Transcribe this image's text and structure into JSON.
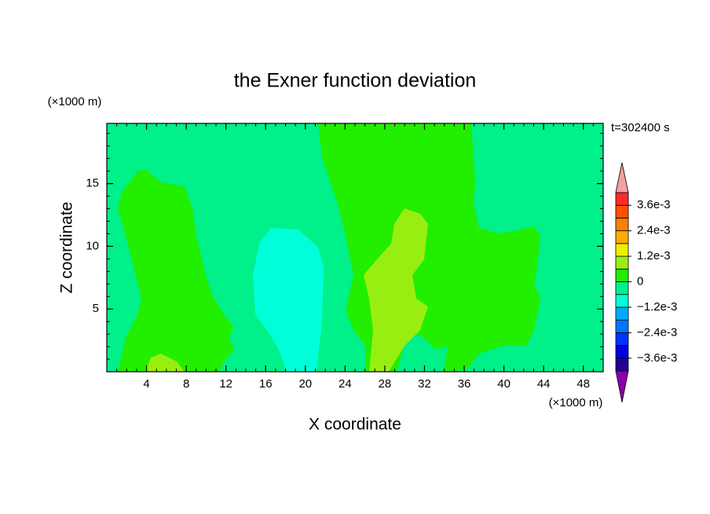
{
  "chart_data": {
    "type": "contour",
    "title": "the Exner function deviation",
    "time_label": "t=302400 s",
    "xlabel": "X coordinate",
    "ylabel": "Z coordinate",
    "x_unit": "(×1000 m)",
    "y_unit": "(×1000 m)",
    "xlim": [
      0,
      50
    ],
    "ylim": [
      0,
      19.8
    ],
    "xticks": [
      4,
      8,
      12,
      16,
      20,
      24,
      28,
      32,
      36,
      40,
      44,
      48
    ],
    "yticks": [
      5,
      10,
      15
    ],
    "minor_tick_step": 1,
    "colorbar": {
      "bins": [
        -0.0042,
        -0.0036,
        -0.003,
        -0.0024,
        -0.0018,
        -0.0012,
        -0.0006,
        0,
        0.0006,
        0.0012,
        0.0018,
        0.0024,
        0.003,
        0.0036,
        0.0042
      ],
      "colors": [
        "#220099",
        "#0000dd",
        "#0033ff",
        "#0077ff",
        "#00aaff",
        "#00ffd8",
        "#00f08a",
        "#22ee00",
        "#99ee11",
        "#eeee00",
        "#ffaa00",
        "#ff8000",
        "#ff5000",
        "#ff2a2a"
      ],
      "under_color": "#8800aa",
      "over_color": "#f5a0a0",
      "ticks": [
        {
          "value": -0.0036,
          "label": "−3.6e-3"
        },
        {
          "value": -0.0024,
          "label": "−2.4e-3"
        },
        {
          "value": -0.0012,
          "label": "−1.2e-3"
        },
        0,
        {
          "value": 0.0012,
          "label": "1.2e-3"
        },
        {
          "value": 0.0024,
          "label": "2.4e-3"
        },
        {
          "value": 0.0036,
          "label": "3.6e-3"
        }
      ]
    }
  }
}
